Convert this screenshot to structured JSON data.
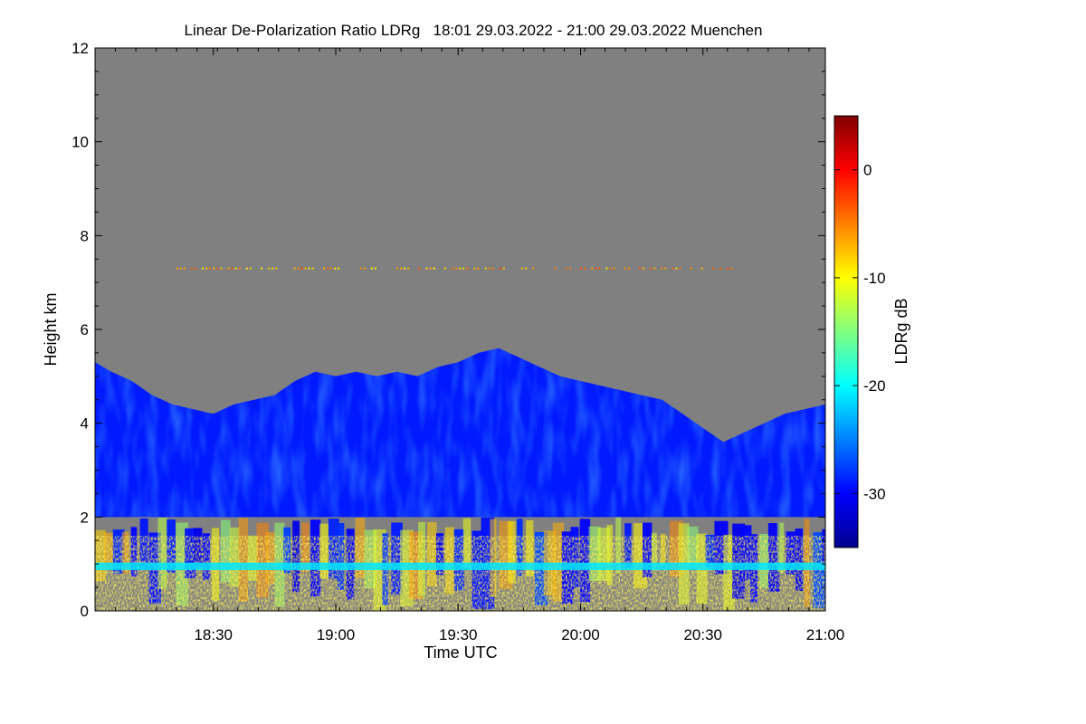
{
  "chart_data": {
    "type": "heatmap",
    "title": "Linear De-Polarization Ratio LDRg   18:01 29.03.2022 - 21:00 29.03.2022 Muenchen",
    "xlabel": "Time UTC",
    "ylabel": "Height km",
    "colorbar_label": "LDRg dB",
    "x_range_min": [
      1081,
      1260
    ],
    "x_ticks_min": [
      1110,
      1140,
      1170,
      1200,
      1230,
      1260
    ],
    "x_tick_labels": [
      "18:30",
      "19:00",
      "19:30",
      "20:00",
      "20:30",
      "21:00"
    ],
    "y_range_km": [
      0,
      12
    ],
    "y_ticks": [
      0,
      2,
      4,
      6,
      8,
      10,
      12
    ],
    "y_tick_labels": [
      "0",
      "2",
      "4",
      "6",
      "8",
      "10",
      "12"
    ],
    "color_range_db": [
      -35,
      5
    ],
    "color_ticks": [
      0,
      -10,
      -20,
      -30
    ],
    "color_tick_labels": [
      "0",
      "-10",
      "-20",
      "-30"
    ],
    "no_signal_color": "#808080",
    "colormap": [
      "#00008f",
      "#0000ff",
      "#0080ff",
      "#00ffff",
      "#80ff80",
      "#ffff00",
      "#ff8000",
      "#ff0000",
      "#800000"
    ],
    "layers": [
      {
        "name": "ice cloud",
        "ldr_db": -29,
        "base_km": 2.0,
        "top_km_profile": [
          [
            1081,
            5.3
          ],
          [
            1085,
            5.1
          ],
          [
            1090,
            4.9
          ],
          [
            1095,
            4.6
          ],
          [
            1100,
            4.4
          ],
          [
            1105,
            4.3
          ],
          [
            1110,
            4.2
          ],
          [
            1115,
            4.4
          ],
          [
            1120,
            4.5
          ],
          [
            1125,
            4.6
          ],
          [
            1130,
            4.9
          ],
          [
            1135,
            5.1
          ],
          [
            1140,
            5.0
          ],
          [
            1145,
            5.1
          ],
          [
            1150,
            5.0
          ],
          [
            1155,
            5.1
          ],
          [
            1160,
            5.0
          ],
          [
            1165,
            5.2
          ],
          [
            1170,
            5.3
          ],
          [
            1175,
            5.5
          ],
          [
            1180,
            5.6
          ],
          [
            1185,
            5.4
          ],
          [
            1190,
            5.2
          ],
          [
            1195,
            5.0
          ],
          [
            1200,
            4.9
          ],
          [
            1205,
            4.8
          ],
          [
            1210,
            4.7
          ],
          [
            1215,
            4.6
          ],
          [
            1220,
            4.5
          ],
          [
            1225,
            4.2
          ],
          [
            1230,
            3.9
          ],
          [
            1235,
            3.6
          ],
          [
            1240,
            3.8
          ],
          [
            1245,
            4.0
          ],
          [
            1250,
            4.2
          ],
          [
            1255,
            4.3
          ],
          [
            1260,
            4.4
          ]
        ]
      },
      {
        "name": "melting layer",
        "ldr_db": -21,
        "height_km": 0.95
      },
      {
        "name": "rain / mixed below 1.8 km",
        "ldr_db_range": [
          -15,
          -5
        ]
      },
      {
        "name": "speckle band near 7.3 km",
        "height_km": 7.3,
        "ldr_db_range": [
          -10,
          -3
        ]
      }
    ]
  }
}
